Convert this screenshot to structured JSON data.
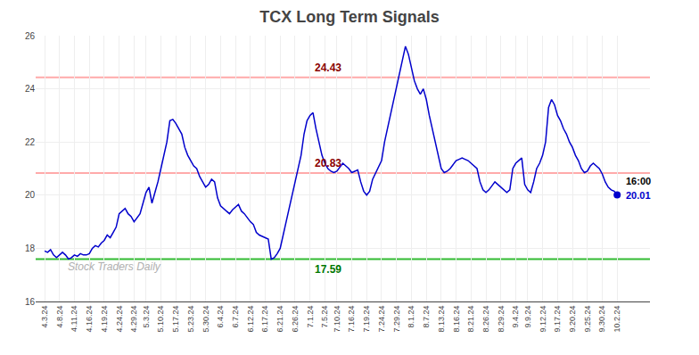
{
  "chart_data": {
    "type": "line",
    "title": "TCX Long Term Signals",
    "categories": [
      "4.3.24",
      null,
      null,
      null,
      null,
      "4.8.24",
      null,
      null,
      null,
      null,
      "4.11.24",
      null,
      null,
      null,
      null,
      "4.16.24",
      null,
      null,
      null,
      null,
      "4.19.24",
      null,
      null,
      null,
      null,
      "4.24.24",
      null,
      null,
      null,
      null,
      "4.29.24",
      null,
      null,
      null,
      "5.3.24",
      null,
      null,
      null,
      null,
      "5.10.24",
      null,
      null,
      null,
      null,
      "5.17.24",
      null,
      null,
      null,
      null,
      "5.23.24",
      null,
      null,
      null,
      null,
      "5.30.24",
      null,
      null,
      null,
      null,
      "6.4.24",
      null,
      null,
      null,
      null,
      "6.7.24",
      null,
      null,
      null,
      null,
      "6.12.24",
      null,
      null,
      null,
      null,
      "6.17.24",
      null,
      null,
      null,
      null,
      "6.21.24",
      null,
      null,
      null,
      null,
      "6.26.24",
      null,
      null,
      null,
      null,
      "7.1.24",
      null,
      null,
      null,
      null,
      "7.5.24",
      null,
      null,
      null,
      "7.10.24",
      null,
      null,
      null,
      null,
      "7.16.24",
      null,
      null,
      null,
      null,
      "7.19.24",
      null,
      null,
      null,
      null,
      "7.24.24",
      null,
      null,
      null,
      null,
      "7.29.24",
      null,
      null,
      null,
      null,
      "8.1.24",
      null,
      null,
      null,
      null,
      "8.7.24",
      null,
      null,
      null,
      null,
      "8.13.24",
      null,
      null,
      null,
      null,
      "8.16.24",
      null,
      null,
      null,
      null,
      "8.21.24",
      null,
      null,
      null,
      null,
      "8.26.24",
      null,
      null,
      null,
      null,
      "8.29.24",
      null,
      null,
      null,
      null,
      "9.4.24",
      null,
      null,
      null,
      "9.9.24",
      null,
      null,
      null,
      null,
      "9.12.24",
      null,
      null,
      null,
      null,
      "9.17.24",
      null,
      null,
      null,
      null,
      "9.20.24",
      null,
      null,
      null,
      null,
      "9.25.24",
      null,
      null,
      null,
      null,
      "9.30.24",
      null,
      null,
      null,
      null,
      "10.2.24"
    ],
    "series": [
      {
        "name": "TCX",
        "color": "#0000cc",
        "values": [
          17.9,
          17.85,
          17.95,
          17.75,
          17.65,
          17.75,
          17.85,
          17.75,
          17.6,
          17.65,
          17.75,
          17.7,
          17.8,
          17.75,
          17.75,
          17.8,
          18.0,
          18.1,
          18.05,
          18.2,
          18.3,
          18.5,
          18.4,
          18.6,
          18.8,
          19.3,
          19.4,
          19.5,
          19.3,
          19.2,
          19.0,
          19.15,
          19.3,
          19.7,
          20.1,
          20.3,
          19.7,
          20.1,
          20.5,
          21.0,
          21.5,
          22.0,
          22.8,
          22.85,
          22.7,
          22.5,
          22.3,
          21.8,
          21.5,
          21.3,
          21.1,
          21.0,
          20.7,
          20.5,
          20.3,
          20.4,
          20.6,
          20.5,
          19.9,
          19.6,
          19.5,
          19.4,
          19.3,
          19.45,
          19.55,
          19.65,
          19.4,
          19.3,
          19.15,
          19.0,
          18.9,
          18.6,
          18.5,
          18.45,
          18.4,
          18.35,
          17.59,
          17.65,
          17.8,
          18.0,
          18.5,
          19.0,
          19.5,
          20.0,
          20.5,
          21.0,
          21.5,
          22.3,
          22.8,
          23.0,
          23.1,
          22.5,
          22.0,
          21.5,
          21.2,
          21.0,
          20.9,
          20.85,
          20.9,
          21.05,
          21.2,
          21.1,
          21.0,
          20.85,
          20.9,
          20.95,
          20.5,
          20.15,
          20.0,
          20.15,
          20.6,
          20.85,
          21.05,
          21.3,
          22.0,
          22.5,
          23.0,
          23.5,
          24.0,
          24.5,
          25.0,
          25.6,
          25.3,
          24.8,
          24.3,
          24.0,
          23.8,
          24.0,
          23.6,
          23.0,
          22.5,
          22.0,
          21.5,
          21.0,
          20.85,
          20.9,
          21.0,
          21.15,
          21.3,
          21.35,
          21.4,
          21.35,
          21.3,
          21.2,
          21.1,
          21.0,
          20.5,
          20.2,
          20.1,
          20.2,
          20.35,
          20.5,
          20.4,
          20.3,
          20.2,
          20.1,
          20.2,
          21.0,
          21.2,
          21.3,
          21.4,
          20.4,
          20.2,
          20.1,
          20.5,
          21.0,
          21.2,
          21.5,
          22.0,
          23.3,
          23.6,
          23.4,
          23.0,
          22.8,
          22.5,
          22.3,
          22.0,
          21.8,
          21.5,
          21.3,
          21.0,
          20.85,
          20.9,
          21.1,
          21.2,
          21.1,
          21.0,
          20.8,
          20.5,
          20.3,
          20.2,
          20.15,
          20.01
        ]
      }
    ],
    "reference_lines": [
      {
        "value": 24.43,
        "label": "24.43",
        "color": "#ffaaaa",
        "label_color": "#8b0000",
        "side": "above"
      },
      {
        "value": 20.83,
        "label": "20.83",
        "color": "#ffaaaa",
        "label_color": "#8b0000",
        "side": "above"
      },
      {
        "value": 17.59,
        "label": "17.59",
        "color": "#33bb33",
        "label_color": "#007700",
        "side": "below"
      }
    ],
    "last_point": {
      "value": 20.01,
      "label": "20.01",
      "time": "16:00",
      "color": "#0000cc"
    },
    "watermark": "Stock Traders Daily",
    "ylim": [
      16,
      26
    ],
    "yticks": [
      16,
      18,
      20,
      22,
      24,
      26
    ],
    "grid": true
  }
}
